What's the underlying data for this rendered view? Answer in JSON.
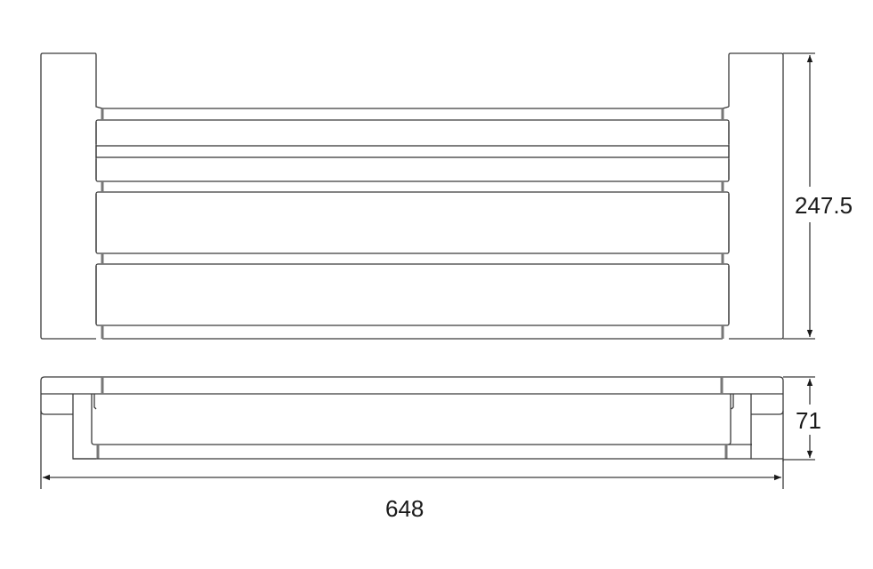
{
  "dimensions": {
    "height_top_view": "247.5",
    "depth_side_view": "71",
    "overall_width": "648"
  },
  "colors": {
    "line": "#3a3a3a",
    "text": "#1a1a1a"
  }
}
